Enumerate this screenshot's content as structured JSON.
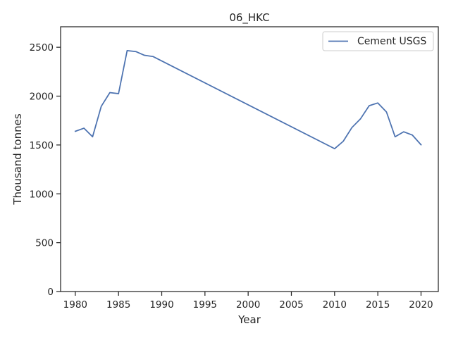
{
  "chart_data": {
    "type": "line",
    "title": "06_HKC",
    "xlabel": "Year",
    "ylabel": "Thousand tonnes",
    "xlim": [
      1978.3,
      2022.0
    ],
    "ylim": [
      0,
      2710
    ],
    "xticks": [
      1980,
      1985,
      1990,
      1995,
      2000,
      2005,
      2010,
      2015,
      2020
    ],
    "yticks": [
      0,
      500,
      1000,
      1500,
      2000,
      2500
    ],
    "grid": false,
    "legend_position": "top-right",
    "series": [
      {
        "name": "Cement USGS",
        "color": "#4c72b0",
        "points": [
          [
            1980,
            1640
          ],
          [
            1981,
            1672
          ],
          [
            1982,
            1584
          ],
          [
            1983,
            1895
          ],
          [
            1984,
            2036
          ],
          [
            1985,
            2025
          ],
          [
            1986,
            2466
          ],
          [
            1987,
            2456
          ],
          [
            1988,
            2418
          ],
          [
            1989,
            2405
          ],
          [
            2010,
            1462
          ],
          [
            2011,
            1538
          ],
          [
            2012,
            1678
          ],
          [
            2013,
            1768
          ],
          [
            2014,
            1902
          ],
          [
            2015,
            1930
          ],
          [
            2016,
            1838
          ],
          [
            2017,
            1584
          ],
          [
            2018,
            1635
          ],
          [
            2019,
            1601
          ],
          [
            2020,
            1502
          ]
        ]
      }
    ]
  }
}
